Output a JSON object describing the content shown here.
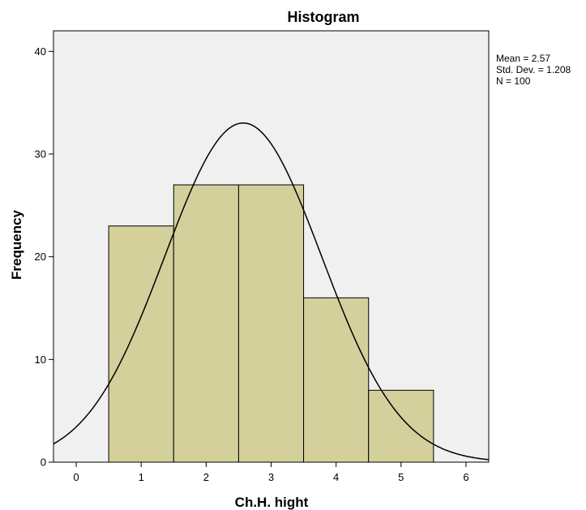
{
  "chart_data": {
    "type": "bar",
    "title": "Histogram",
    "xlabel": "Ch.H. hight",
    "ylabel": "Frequency",
    "categories": [
      "1",
      "2",
      "3",
      "4",
      "5"
    ],
    "bins": [
      1,
      2,
      3,
      4,
      5
    ],
    "values": [
      23,
      27,
      27,
      16,
      7
    ],
    "xlim": [
      -0.35,
      6.35
    ],
    "ylim": [
      0,
      42
    ],
    "xticks": [
      0,
      1,
      2,
      3,
      4,
      5,
      6
    ],
    "yticks": [
      0,
      10,
      20,
      30,
      40
    ],
    "grid": false,
    "bar_color": "#d4d09c",
    "plot_background": "#f0f0f0",
    "normal_curve": {
      "mean": 2.57,
      "std": 1.208,
      "n": 100,
      "bin_width": 1
    },
    "stats": {
      "mean": "Mean = 2.57",
      "std": "Std. Dev. = 1.208",
      "n": "N = 100"
    }
  }
}
